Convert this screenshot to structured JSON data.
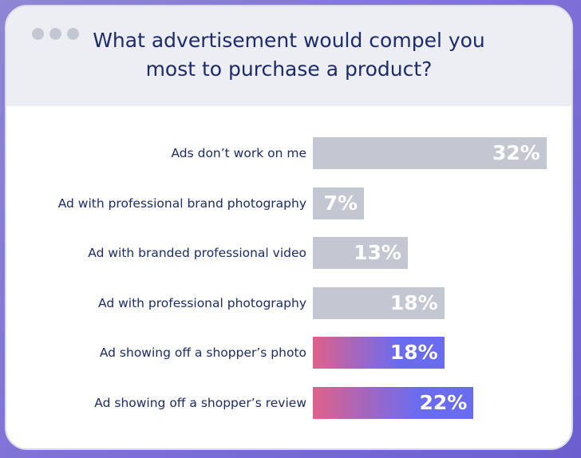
{
  "chart_data": {
    "type": "bar",
    "orientation": "horizontal",
    "title": "What advertisement would compel you most to purchase a product?",
    "categories": [
      "Ads don’t work on me",
      "Ad with professional brand photography",
      "Ad with branded professional video",
      "Ad with professional photography",
      "Ad showing off a shopper’s photo",
      "Ad showing off a shopper’s review"
    ],
    "values": [
      32,
      7,
      13,
      18,
      18,
      22
    ],
    "value_labels": [
      "32%",
      "7%",
      "13%",
      "18%",
      "18%",
      "22%"
    ],
    "unit": "%",
    "highlighted": [
      false,
      false,
      false,
      false,
      true,
      true
    ],
    "colors": {
      "default_bar": "#c3c7d1",
      "highlight_start": "#e0618a",
      "highlight_end": "#6a6cf0",
      "text": "#1c2b6b"
    },
    "grid": false
  }
}
